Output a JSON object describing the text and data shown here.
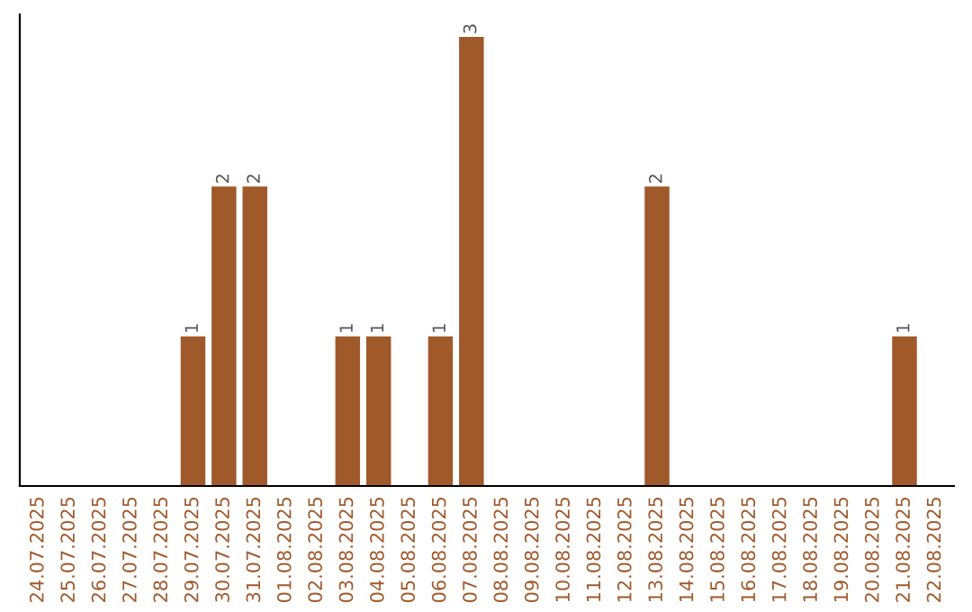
{
  "chart_data": {
    "type": "bar",
    "categories": [
      "24.07.2025",
      "25.07.2025",
      "26.07.2025",
      "27.07.2025",
      "28.07.2025",
      "29.07.2025",
      "30.07.2025",
      "31.07.2025",
      "01.08.2025",
      "02.08.2025",
      "03.08.2025",
      "04.08.2025",
      "05.08.2025",
      "06.08.2025",
      "07.08.2025",
      "08.08.2025",
      "09.08.2025",
      "10.08.2025",
      "11.08.2025",
      "12.08.2025",
      "13.08.2025",
      "14.08.2025",
      "15.08.2025",
      "16.08.2025",
      "17.08.2025",
      "18.08.2025",
      "19.08.2025",
      "20.08.2025",
      "21.08.2025",
      "22.08.2025"
    ],
    "series": [
      {
        "color": "#a0592b",
        "values": [
          0,
          0,
          0,
          0,
          0,
          1,
          2,
          2,
          0,
          0,
          1,
          1,
          0,
          1,
          3,
          0,
          0,
          0,
          0,
          0,
          2,
          0,
          0,
          0,
          0,
          0,
          0,
          0,
          1,
          0
        ],
        "value_labels": [
          null,
          null,
          null,
          null,
          null,
          "1",
          "2",
          "2",
          null,
          null,
          "1",
          "1",
          null,
          "1",
          "3",
          null,
          null,
          null,
          null,
          null,
          "2",
          null,
          null,
          null,
          null,
          null,
          null,
          null,
          "1",
          null
        ]
      }
    ],
    "tick_labels": "x",
    "grid": false,
    "legend": false
  }
}
